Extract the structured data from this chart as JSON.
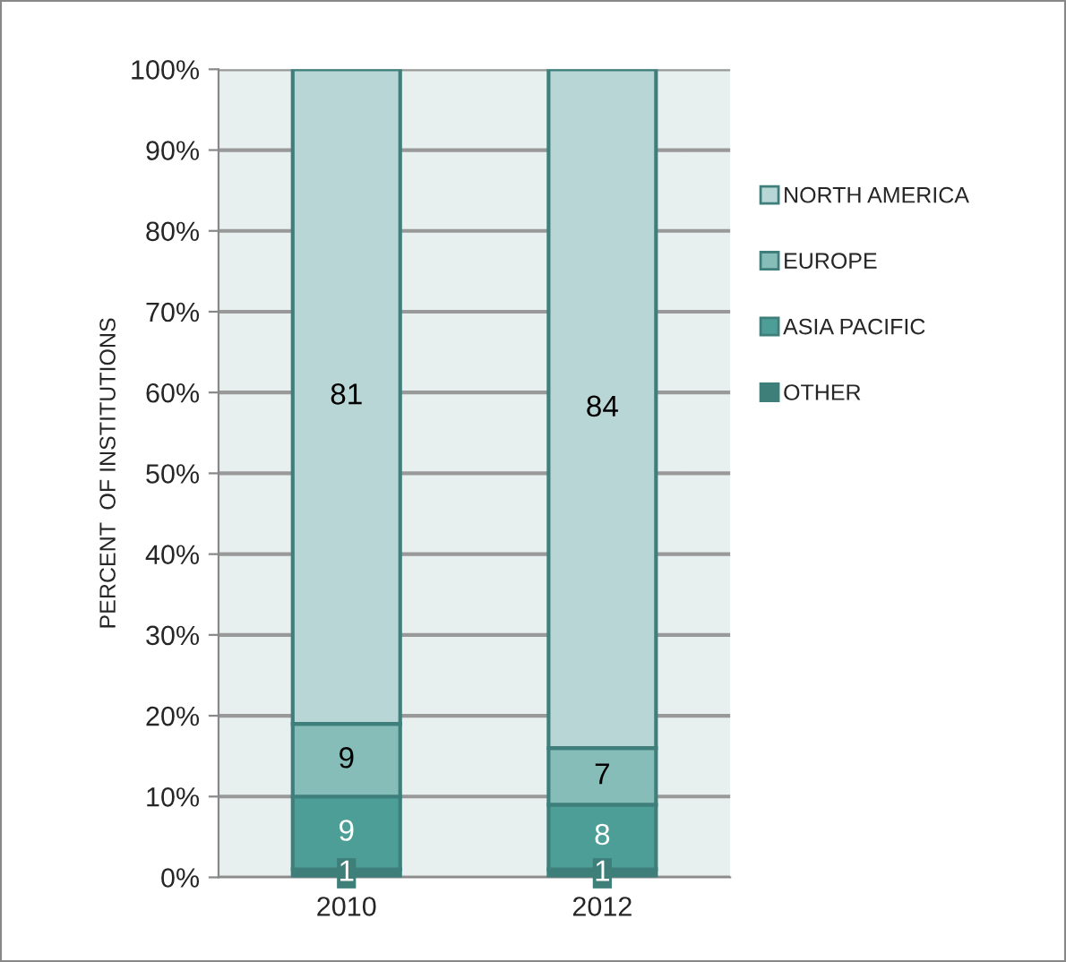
{
  "chart_data": {
    "type": "bar",
    "stacked": true,
    "ylabel": "PERCENT  OF INSTITUTIONS",
    "categories": [
      "2010",
      "2012"
    ],
    "series": [
      {
        "name": "OTHER",
        "color": "#3e7f7a",
        "values": [
          1,
          1
        ]
      },
      {
        "name": "ASIA PACIFIC",
        "color": "#4e9e98",
        "values": [
          9,
          8
        ]
      },
      {
        "name": "EUROPE",
        "color": "#86bdb9",
        "values": [
          9,
          7
        ]
      },
      {
        "name": "NORTH AMERICA",
        "color": "#b9d6d6",
        "values": [
          81,
          84
        ]
      }
    ],
    "ylim": [
      0,
      100
    ],
    "yticks": [
      {
        "value": 0,
        "label": "0%"
      },
      {
        "value": 10,
        "label": "10%"
      },
      {
        "value": 20,
        "label": "20%"
      },
      {
        "value": 30,
        "label": "30%"
      },
      {
        "value": 40,
        "label": "40%"
      },
      {
        "value": 50,
        "label": "50%"
      },
      {
        "value": 60,
        "label": "60%"
      },
      {
        "value": 70,
        "label": "70%"
      },
      {
        "value": 80,
        "label": "80%"
      },
      {
        "value": 90,
        "label": "90%"
      },
      {
        "value": 100,
        "label": "100%"
      }
    ],
    "grid": "y",
    "legend": "right",
    "data_labels": true
  }
}
